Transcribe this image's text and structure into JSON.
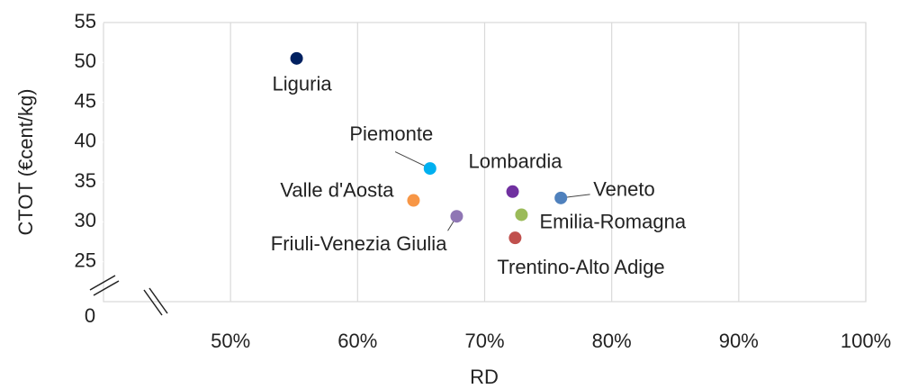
{
  "chart_data": {
    "type": "scatter",
    "x_label": "RD",
    "y_label": "CTOT (€cent/kg)",
    "origin_label": "0",
    "xlim": [
      40,
      100
    ],
    "ylim": [
      20,
      55
    ],
    "xticks": [
      {
        "value": 50,
        "label": "50%"
      },
      {
        "value": 60,
        "label": "60%"
      },
      {
        "value": 70,
        "label": "70%"
      },
      {
        "value": 80,
        "label": "80%"
      },
      {
        "value": 90,
        "label": "90%"
      },
      {
        "value": 100,
        "label": "100%"
      }
    ],
    "yticks": [
      25,
      30,
      35,
      40,
      45,
      50,
      55
    ],
    "grid": "x",
    "series": [
      {
        "name": "Liguria",
        "color": "#002060",
        "x": [
          55.2
        ],
        "values": [
          50.5
        ]
      },
      {
        "name": "Piemonte",
        "color": "#00b0f0",
        "x": [
          65.7
        ],
        "values": [
          36.7
        ]
      },
      {
        "name": "Lombardia",
        "color": "#7030a0",
        "x": [
          72.2
        ],
        "values": [
          33.8
        ]
      },
      {
        "name": "Veneto",
        "color": "#4f81bd",
        "x": [
          76.0
        ],
        "values": [
          33.0
        ]
      },
      {
        "name": "Valle d'Aosta",
        "color": "#f79646",
        "x": [
          64.4
        ],
        "values": [
          32.7
        ]
      },
      {
        "name": "Friuli-Venezia Giulia",
        "color": "#8f76b4",
        "x": [
          67.8
        ],
        "values": [
          30.7
        ]
      },
      {
        "name": "Emilia-Romagna",
        "color": "#9bbb59",
        "x": [
          72.9
        ],
        "values": [
          30.9
        ]
      },
      {
        "name": "Trentino-Alto Adige",
        "color": "#c0504d",
        "x": [
          72.4
        ],
        "values": [
          28.0
        ]
      }
    ]
  }
}
